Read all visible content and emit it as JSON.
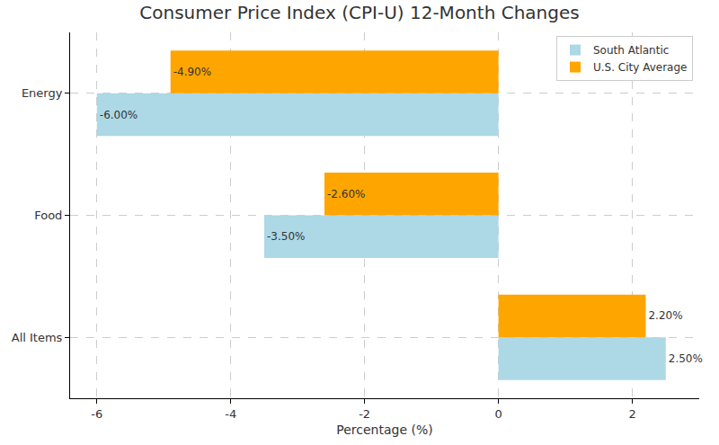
{
  "chart_data": {
    "type": "bar",
    "orientation": "horizontal",
    "title": "Consumer Price Index (CPI-U) 12-Month Changes",
    "x_label": "Percentage (%)",
    "categories": [
      "All Items",
      "Food",
      "Energy"
    ],
    "series": [
      {
        "name": "South Atlantic",
        "color": "#add8e6",
        "values": [
          2.5,
          -3.5,
          -6.0
        ],
        "value_labels": [
          "2.50%",
          "-3.50%",
          "-6.00%"
        ]
      },
      {
        "name": "U.S. City Average",
        "color": "#ffa500",
        "values": [
          2.2,
          -2.6,
          -4.9
        ],
        "value_labels": [
          "2.20%",
          "-2.60%",
          "-4.90%"
        ]
      }
    ],
    "xlim": [
      -6.4,
      3.0
    ],
    "xticks": [
      -6,
      -4,
      -2,
      0,
      2
    ],
    "grid": true,
    "legend": "upper right",
    "data_labels": true
  }
}
